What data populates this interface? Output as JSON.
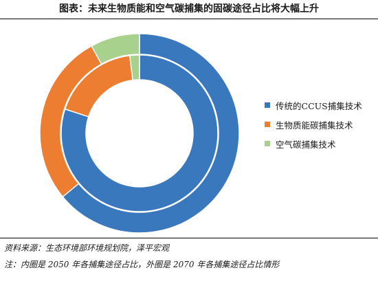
{
  "title": "图表：未来生物质能和空气碳捕集的固碳途径占比将大幅上升",
  "footer": {
    "source": "资料来源：生态环境部环境规划院，泽平宏观",
    "note": "注：内圈是 2050 年各捕集途径占比，外圈是 2070 年各捕集途径占比情形"
  },
  "chart_data": {
    "type": "pie",
    "variant": "nested-donut",
    "categories": [
      "传统的CCUS捕集技术",
      "生物质能碳捕集技术",
      "空气碳捕集技术"
    ],
    "colors": [
      "#3a78be",
      "#ed7d31",
      "#a9d18e"
    ],
    "series": [
      {
        "ring": "inner",
        "values": [
          80,
          18,
          2
        ]
      },
      {
        "ring": "outer",
        "values": [
          64,
          28,
          8
        ]
      }
    ],
    "legend_position": "right"
  }
}
